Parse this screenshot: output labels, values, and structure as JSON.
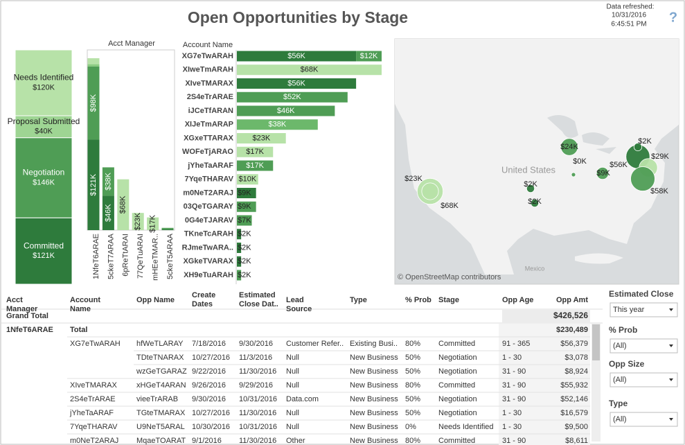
{
  "header": {
    "title": "Open Opportunities by Stage",
    "refreshed_label": "Data refreshed:",
    "refreshed_date": "10/31/2016",
    "refreshed_time": "6:45:51 PM",
    "help": "?"
  },
  "chart_data": [
    {
      "type": "bar",
      "stacked": true,
      "series": [
        {
          "name": "Committed",
          "color": "#2e7b3c",
          "values": [
            121
          ],
          "value_labels": [
            "$121K"
          ]
        },
        {
          "name": "Negotiation",
          "color": "#4f9d55",
          "values": [
            146
          ],
          "value_labels": [
            "$146K"
          ]
        },
        {
          "name": "Proposal Submitted",
          "color": "#9ed593",
          "values": [
            40
          ],
          "value_labels": [
            "$40K"
          ]
        },
        {
          "name": "Needs Identified",
          "color": "#b7e2a8",
          "values": [
            120
          ],
          "value_labels": [
            "$120K"
          ]
        }
      ]
    },
    {
      "type": "bar",
      "stacked": true,
      "x_label": "Acct Manager",
      "categories": [
        "1NfeT6ARAE",
        "5ckeT7ARAA",
        "6pReTtARAI",
        "77QeTuARAI",
        "mHEeTMAR..",
        "5ckeT5ARAA"
      ],
      "series": [
        {
          "color": "#2e7b3c",
          "values": [
            121,
            46,
            0,
            0,
            0,
            1
          ],
          "value_labels": [
            "$121K",
            "$46K",
            null,
            null,
            null,
            null
          ]
        },
        {
          "color": "#4f9d55",
          "values": [
            98,
            38,
            0,
            0,
            0,
            2
          ],
          "value_labels": [
            "$98K",
            "$38K",
            null,
            null,
            null,
            null
          ]
        },
        {
          "color": "#8acb80",
          "values": [
            3,
            0,
            0,
            0,
            0,
            0
          ],
          "value_labels": [
            null,
            null,
            null,
            null,
            null,
            null
          ]
        },
        {
          "color": "#b7e2a8",
          "values": [
            8,
            0,
            68,
            23,
            17,
            0
          ],
          "value_labels": [
            null,
            null,
            "$68K",
            "$23K",
            "$17K",
            null
          ]
        }
      ]
    },
    {
      "type": "hbar",
      "stacked": true,
      "y_label": "Account Name",
      "categories": [
        "XG7eTwARAH",
        "XIweTmARAH",
        "XIveTMARAX",
        "2S4eTrARAE",
        "iJCeTfARAN",
        "XIJeTmARAP",
        "XGxeTTARAX",
        "WOFeTjARAO",
        "jYheTaARAF",
        "7YqeTHARAV",
        "m0NeT2ARAJ",
        "03QeTGARAY",
        "0G4eTJARAV",
        "TKneTcARAH",
        "RJmeTwARA..",
        "XGkeTVARAX",
        "XH9eTuARAH"
      ],
      "series": [
        {
          "color": "#2e7b3c",
          "values": [
            56,
            0,
            56,
            0,
            0,
            0,
            0,
            0,
            0,
            0,
            9,
            0,
            0,
            2,
            2,
            2,
            0
          ],
          "value_labels": [
            "$56K",
            null,
            "$56K",
            null,
            null,
            null,
            null,
            null,
            null,
            null,
            "$9K",
            null,
            null,
            "$2K",
            "$2K",
            "$2K",
            null
          ]
        },
        {
          "color": "#4f9d55",
          "values": [
            12,
            0,
            0,
            52,
            46,
            0,
            0,
            0,
            17,
            0,
            0,
            9,
            7,
            0,
            0,
            0,
            2
          ],
          "value_labels": [
            "$12K",
            null,
            null,
            "$52K",
            "$46K",
            null,
            null,
            null,
            "$17K",
            null,
            null,
            "$9K",
            "$7K",
            null,
            null,
            null,
            "$2K"
          ]
        },
        {
          "color": "#6cb86b",
          "values": [
            0,
            0,
            0,
            0,
            0,
            38,
            0,
            0,
            0,
            0,
            0,
            0,
            0,
            0,
            0,
            0,
            0
          ],
          "value_labels": [
            null,
            null,
            null,
            null,
            null,
            "$38K",
            null,
            null,
            null,
            null,
            null,
            null,
            null,
            null,
            null,
            null,
            null
          ]
        },
        {
          "color": "#b7e2a8",
          "values": [
            0,
            68,
            0,
            0,
            0,
            0,
            23,
            17,
            0,
            10,
            0,
            0,
            0,
            0,
            0,
            0,
            0
          ],
          "value_labels": [
            null,
            "$68K",
            null,
            null,
            null,
            null,
            "$23K",
            "$17K",
            null,
            "$10K",
            null,
            null,
            null,
            null,
            null,
            null,
            null
          ]
        }
      ]
    },
    {
      "type": "map",
      "country_label": "United States",
      "mexico_label": "Mexico",
      "attribution": "© OpenStreetMap contributors",
      "values": [
        68,
        23,
        24,
        0,
        2,
        56,
        9,
        2,
        2,
        29,
        58
      ],
      "value_labels": [
        "$68K",
        "$23K",
        "$24K",
        "$0K",
        "$2K",
        "$56K",
        "$9K",
        "$2K",
        "$2K",
        "$29K",
        "$58K"
      ],
      "colors": [
        "#b7e2a8",
        "#b7e2a8",
        "#4f9d55",
        "#4f9d55",
        "#2e7b3c",
        "#2e7b3c",
        "#4f9d55",
        "#2e7b3c",
        "#2e7b3c",
        "#b7e2a8",
        "#4f9d55"
      ]
    }
  ],
  "table": {
    "columns": [
      "Acct Manager",
      "Account Name",
      "Opp Name",
      "Create Dates",
      "Estimated Close Dat..",
      "Lead Source",
      "Type",
      "% Prob",
      "Stage",
      "Opp Age",
      "Opp Amt"
    ],
    "grand_total": {
      "label": "Grand Total",
      "amount": "$426,526"
    },
    "group": {
      "name": "1NfeT6ARAE",
      "total_label": "Total",
      "amount": "$230,489"
    },
    "rows": [
      [
        "XG7eTwARAH",
        "hfWeTLARAY",
        "7/18/2016",
        "9/30/2016",
        "Customer Refer..",
        "Existing Busi..",
        "80%",
        "Committed",
        "91 - 365",
        "$56,379"
      ],
      [
        null,
        "TDteTNARAX",
        "10/27/2016",
        "11/3/2016",
        "Null",
        "New Business",
        "50%",
        "Negotiation",
        "1 - 30",
        "$3,078"
      ],
      [
        null,
        "wzGeTGARAZ",
        "9/22/2016",
        "11/30/2016",
        "Null",
        "New Business",
        "50%",
        "Negotiation",
        "31 - 90",
        "$8,924"
      ],
      [
        "XIveTMARAX",
        "xHGeT4ARAN",
        "9/26/2016",
        "9/29/2016",
        "Null",
        "New Business",
        "80%",
        "Committed",
        "31 - 90",
        "$55,932"
      ],
      [
        "2S4eTrARAE",
        "vieeTrARAB",
        "9/30/2016",
        "10/31/2016",
        "Data.com",
        "New Business",
        "50%",
        "Negotiation",
        "31 - 90",
        "$52,146"
      ],
      [
        "jYheTaARAF",
        "TGteTMARAX",
        "10/27/2016",
        "11/30/2016",
        "Null",
        "New Business",
        "50%",
        "Negotiation",
        "1 - 30",
        "$16,579"
      ],
      [
        "7YqeTHARAV",
        "U9NeT5ARAL",
        "10/30/2016",
        "10/31/2016",
        "Null",
        "New Business",
        "0%",
        "Needs Identified",
        "1 - 30",
        "$9,500"
      ],
      [
        "m0NeT2ARAJ",
        "MqaeTOARAT",
        "9/1/2016",
        "11/30/2016",
        "Other",
        "New Business",
        "80%",
        "Committed",
        "31 - 90",
        "$8,611"
      ]
    ]
  },
  "filters": [
    {
      "label": "Estimated Close",
      "value": "This year"
    },
    {
      "label": "% Prob",
      "value": "(All)"
    },
    {
      "label": "Opp Size",
      "value": "(All)"
    },
    {
      "label": "Type",
      "value": "(All)"
    }
  ]
}
